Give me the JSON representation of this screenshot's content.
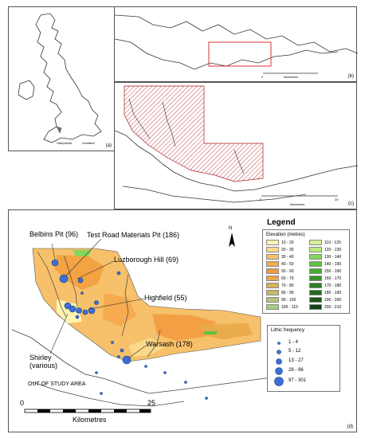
{
  "panels": {
    "a": {
      "label": "(a)",
      "places": [
        "Hampshire",
        "Scotland"
      ]
    },
    "b": {
      "label": "(b)",
      "scale_zero": "0",
      "scale_unit": "kilometres"
    },
    "c": {
      "label": "(c)",
      "scale_zero": "0",
      "scale_end": "20",
      "scale_unit": "kilometres"
    },
    "d": {
      "label": "(d)"
    }
  },
  "map": {
    "sites": [
      {
        "name": "Belbins Pit (96)"
      },
      {
        "name": "Test Road Materials Pit (186)"
      },
      {
        "name": "Luzborough Hill (69)"
      },
      {
        "name": "Highfield (55)"
      },
      {
        "name": "Warsash (178)"
      },
      {
        "name": "Shirley"
      },
      {
        "name": "(various)"
      }
    ],
    "out_of_study": "OUT OF STUDY AREA",
    "north": "N",
    "scale": {
      "start": "0",
      "end": "25",
      "unit": "Kilometres"
    }
  },
  "legend": {
    "title": "Legend",
    "elevation_title": "Elevation (metres)",
    "elevation_classes": [
      {
        "label": "10 - 20",
        "color": "#fff3b0"
      },
      {
        "label": "20 - 30",
        "color": "#fbd98a"
      },
      {
        "label": "30 - 40",
        "color": "#f7c06a"
      },
      {
        "label": "40 - 50",
        "color": "#f6a94e"
      },
      {
        "label": "50 - 60",
        "color": "#f29a3e"
      },
      {
        "label": "60 - 70",
        "color": "#e8a84a"
      },
      {
        "label": "70 - 80",
        "color": "#d7b25a"
      },
      {
        "label": "80 - 90",
        "color": "#c7b969"
      },
      {
        "label": "90 - 100",
        "color": "#b6c277"
      },
      {
        "label": "100 - 110",
        "color": "#a4cf78"
      },
      {
        "label": "110 - 120",
        "color": "#d9f09a"
      },
      {
        "label": "120 - 130",
        "color": "#bfe87e"
      },
      {
        "label": "130 - 140",
        "color": "#86d65a"
      },
      {
        "label": "140 - 150",
        "color": "#5fc23f"
      },
      {
        "label": "150 - 160",
        "color": "#44ad33"
      },
      {
        "label": "160 - 170",
        "color": "#35952a"
      },
      {
        "label": "170 - 180",
        "color": "#2a7f23"
      },
      {
        "label": "180 - 190",
        "color": "#226b1d"
      },
      {
        "label": "190 - 200",
        "color": "#1b5717"
      },
      {
        "label": "200 - 210",
        "color": "#134412"
      }
    ],
    "frequency_title": "Lithic frequency",
    "frequency_classes": [
      "1 - 4",
      "5 - 12",
      "13 - 27",
      "28 - 96",
      "97 - 301"
    ]
  }
}
